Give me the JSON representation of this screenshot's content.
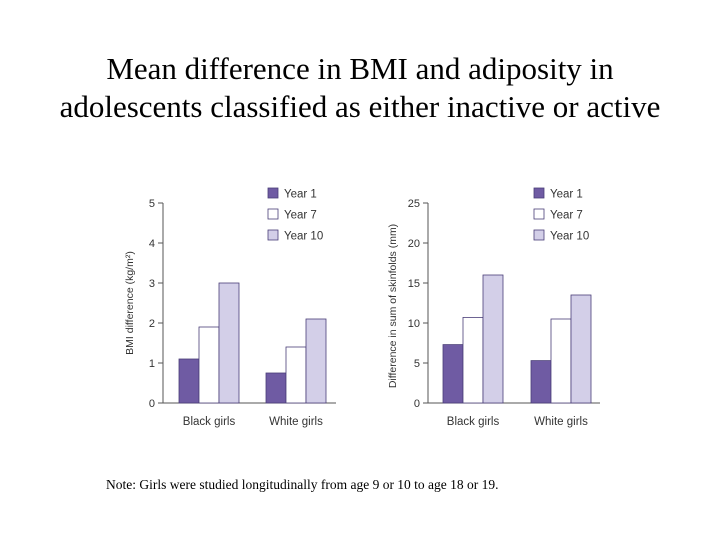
{
  "title": {
    "line1": "Mean difference in BMI and adiposity in",
    "line2": "adolescents classified as either inactive or active"
  },
  "note": "Note: Girls were studied longitudinally from age 9 or 10 to age 18 or 19.",
  "colors": {
    "year1": "#6f5ba3",
    "year7": "#ffffff",
    "year10": "#d3cfe8",
    "outline": "#4a3e78",
    "axis": "#555555"
  },
  "chart_data": [
    {
      "type": "bar",
      "categories": [
        "Black girls",
        "White girls"
      ],
      "series": [
        {
          "name": "Year 1",
          "values": [
            1.1,
            0.75
          ]
        },
        {
          "name": "Year 7",
          "values": [
            1.9,
            1.4
          ]
        },
        {
          "name": "Year 10",
          "values": [
            3.0,
            2.1
          ]
        }
      ],
      "ylabel": "BMI difference (kg/m²)",
      "ylim": [
        0,
        5
      ],
      "yticks": [
        "0",
        "1",
        "2",
        "3",
        "4",
        "5"
      ],
      "legend": "top-right",
      "grid": false
    },
    {
      "type": "bar",
      "categories": [
        "Black girls",
        "White girls"
      ],
      "series": [
        {
          "name": "Year 1",
          "values": [
            7.3,
            5.3
          ]
        },
        {
          "name": "Year 7",
          "values": [
            10.7,
            10.5
          ]
        },
        {
          "name": "Year 10",
          "values": [
            16.0,
            13.5
          ]
        }
      ],
      "ylabel": "Difference in sum of skinfolds (mm)",
      "ylim": [
        0,
        25
      ],
      "yticks": [
        "0",
        "5",
        "10",
        "15",
        "20",
        "25"
      ],
      "legend": "top-right",
      "grid": false
    }
  ]
}
